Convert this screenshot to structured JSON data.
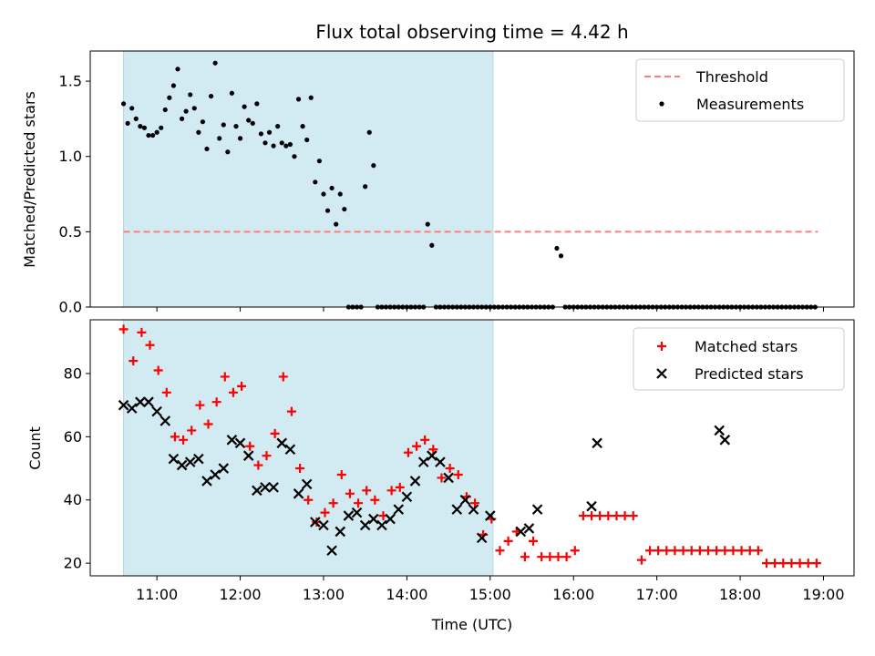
{
  "chart_data": [
    {
      "type": "scatter",
      "title": "Flux total observing time = 4.42 h",
      "xlabel": "",
      "ylabel": "Matched/Predicted stars",
      "xlim": [
        "10:12",
        "19:22"
      ],
      "ylim": [
        0,
        1.7
      ],
      "yticks": [
        "0.0",
        "0.5",
        "1.0",
        "1.5"
      ],
      "shaded_interval": [
        "10:36",
        "15:02"
      ],
      "colors": {
        "threshold": "#ff7f7f",
        "measurements": "#000000",
        "shade": "#add8e6"
      },
      "legend_position": "upper right",
      "threshold": {
        "label": "Threshold",
        "value": 0.5,
        "x_start": "10:36",
        "x_end": "18:56"
      },
      "series": [
        {
          "name": "Measurements",
          "x": [
            "10:36",
            "10:39",
            "10:42",
            "10:45",
            "10:48",
            "10:51",
            "10:54",
            "10:57",
            "11:00",
            "11:03",
            "11:06",
            "11:09",
            "11:12",
            "11:15",
            "11:18",
            "11:21",
            "11:24",
            "11:27",
            "11:30",
            "11:33",
            "11:36",
            "11:39",
            "11:42",
            "11:45",
            "11:48",
            "11:51",
            "11:54",
            "11:57",
            "12:00",
            "12:03",
            "12:06",
            "12:09",
            "12:12",
            "12:15",
            "12:18",
            "12:21",
            "12:24",
            "12:27",
            "12:30",
            "12:33",
            "12:36",
            "12:39",
            "12:42",
            "12:45",
            "12:48",
            "12:51",
            "12:54",
            "12:57",
            "13:00",
            "13:03",
            "13:06",
            "13:09",
            "13:12",
            "13:15",
            "13:18",
            "13:21",
            "13:24",
            "13:27",
            "13:30",
            "13:33",
            "13:36",
            "13:39",
            "13:42",
            "13:45",
            "13:48",
            "13:51",
            "13:54",
            "13:57",
            "14:00",
            "14:03",
            "14:06",
            "14:09",
            "14:12",
            "14:15",
            "14:18",
            "14:21",
            "14:24",
            "14:27",
            "14:30",
            "14:33",
            "14:36",
            "14:39",
            "14:42",
            "14:45",
            "14:48",
            "14:51",
            "14:54",
            "14:57",
            "15:00",
            "15:03",
            "15:06",
            "15:09",
            "15:12",
            "15:15",
            "15:18",
            "15:21",
            "15:24",
            "15:27",
            "15:30",
            "15:33",
            "15:36",
            "15:39",
            "15:42",
            "15:45",
            "15:48",
            "15:51",
            "15:54",
            "15:57",
            "16:00",
            "16:03",
            "16:06",
            "16:09",
            "16:12",
            "16:15",
            "16:18",
            "16:21",
            "16:24",
            "16:27",
            "16:30",
            "16:33",
            "16:36",
            "16:39",
            "16:42",
            "16:45",
            "16:48",
            "16:51",
            "16:54",
            "16:57",
            "17:00",
            "17:03",
            "17:06",
            "17:09",
            "17:12",
            "17:15",
            "17:18",
            "17:21",
            "17:24",
            "17:27",
            "17:30",
            "17:33",
            "17:36",
            "17:39",
            "17:42",
            "17:45",
            "17:48",
            "17:51",
            "17:54",
            "17:57",
            "18:00",
            "18:03",
            "18:06",
            "18:09",
            "18:12",
            "18:15",
            "18:18",
            "18:21",
            "18:24",
            "18:27",
            "18:30",
            "18:33",
            "18:36",
            "18:39",
            "18:42",
            "18:45",
            "18:48",
            "18:51",
            "18:54"
          ],
          "y": [
            1.35,
            1.22,
            1.32,
            1.25,
            1.2,
            1.19,
            1.14,
            1.14,
            1.16,
            1.19,
            1.31,
            1.39,
            1.47,
            1.58,
            1.25,
            1.3,
            1.41,
            1.32,
            1.16,
            1.23,
            1.05,
            1.4,
            1.62,
            1.12,
            1.21,
            1.03,
            1.42,
            1.2,
            1.12,
            1.33,
            1.24,
            1.22,
            1.35,
            1.15,
            1.09,
            1.16,
            1.07,
            1.2,
            1.09,
            1.07,
            1.08,
            1.0,
            1.38,
            1.2,
            1.11,
            1.39,
            0.83,
            0.97,
            0.75,
            0.64,
            0.79,
            0.55,
            0.75,
            0.65,
            0.0,
            0.0,
            0.0,
            0.0,
            0.8,
            1.16,
            0.94,
            0.0,
            0.0,
            0.0,
            0.0,
            0.0,
            0.0,
            0.0,
            0.0,
            0.0,
            0.0,
            0.0,
            0.0,
            0.55,
            0.41,
            0.0,
            0.0,
            0.0,
            0.0,
            0.0,
            0.0,
            0.0,
            0.0,
            0.0,
            0.0,
            0.0,
            0.0,
            0.0,
            0.0,
            0.0,
            0.0,
            0.0,
            0.0,
            0.0,
            0.0,
            0.0,
            0.0,
            0.0,
            0.0,
            0.0,
            0.0,
            0.0,
            0.0,
            0.0,
            0.39,
            0.34,
            0.0,
            0.0,
            0.0,
            0.0,
            0.0,
            0.0,
            0.0,
            0.0,
            0.0,
            0.0,
            0.0,
            0.0,
            0.0,
            0.0,
            0.0,
            0.0,
            0.0,
            0.0,
            0.0,
            0.0,
            0.0,
            0.0,
            0.0,
            0.0,
            0.0,
            0.0,
            0.0,
            0.0,
            0.0,
            0.0,
            0.0,
            0.0,
            0.0,
            0.0,
            0.0,
            0.0,
            0.0,
            0.0,
            0.0,
            0.0,
            0.0,
            0.0,
            0.0,
            0.0,
            0.0,
            0.0,
            0.0,
            0.0,
            0.0,
            0.0,
            0.0,
            0.0,
            0.0,
            0.0,
            0.0,
            0.0,
            0.0,
            0.0,
            0.0,
            0.0,
            0.0
          ]
        }
      ],
      "legend": [
        "Threshold",
        "Measurements"
      ]
    },
    {
      "type": "scatter",
      "title": "",
      "xlabel": "Time (UTC)",
      "ylabel": "Count",
      "xlim": [
        "10:12",
        "19:22"
      ],
      "ylim": [
        16,
        97
      ],
      "yticks": [
        "20",
        "40",
        "60",
        "80"
      ],
      "xticks": [
        "11:00",
        "12:00",
        "13:00",
        "14:00",
        "15:00",
        "16:00",
        "17:00",
        "18:00",
        "19:00"
      ],
      "shaded_interval": [
        "10:36",
        "15:02"
      ],
      "colors": {
        "matched": "#ff0000",
        "predicted": "#000000",
        "shade": "#add8e6"
      },
      "legend_position": "upper right",
      "series": [
        {
          "name": "Matched stars",
          "marker": "plus",
          "x": [
            "10:36",
            "10:43",
            "10:49",
            "10:55",
            "11:01",
            "11:07",
            "11:13",
            "11:19",
            "11:25",
            "11:31",
            "11:37",
            "11:43",
            "11:49",
            "11:55",
            "12:01",
            "12:07",
            "12:13",
            "12:19",
            "12:25",
            "12:31",
            "12:37",
            "12:43",
            "12:49",
            "12:55",
            "13:01",
            "13:07",
            "13:13",
            "13:19",
            "13:25",
            "13:31",
            "13:37",
            "13:43",
            "13:49",
            "13:55",
            "14:01",
            "14:07",
            "14:13",
            "14:19",
            "14:25",
            "14:31",
            "14:37",
            "14:43",
            "14:49",
            "14:55",
            "15:01",
            "15:07",
            "15:13",
            "15:19",
            "15:25",
            "15:31",
            "15:37",
            "15:43",
            "15:49",
            "15:55",
            "16:01",
            "16:07",
            "16:13",
            "16:19",
            "16:25",
            "16:31",
            "16:37",
            "16:43",
            "16:49",
            "16:55",
            "17:01",
            "17:07",
            "17:13",
            "17:19",
            "17:25",
            "17:31",
            "17:37",
            "17:43",
            "17:49",
            "17:55",
            "18:01",
            "18:07",
            "18:13",
            "18:19",
            "18:25",
            "18:31",
            "18:37",
            "18:43",
            "18:49",
            "18:55"
          ],
          "y": [
            94,
            84,
            93,
            89,
            81,
            74,
            60,
            59,
            62,
            70,
            64,
            71,
            79,
            74,
            76,
            57,
            51,
            54,
            61,
            79,
            68,
            50,
            40,
            33,
            36,
            39,
            48,
            42,
            39,
            43,
            40,
            35,
            43,
            44,
            55,
            57,
            59,
            56,
            47,
            50,
            48,
            41,
            39,
            29,
            34,
            24,
            27,
            30,
            22,
            27,
            22,
            22,
            22,
            22,
            24,
            35,
            35,
            35,
            35,
            35,
            35,
            35,
            21,
            24,
            24,
            24,
            24,
            24,
            24,
            24,
            24,
            24,
            24,
            24,
            24,
            24,
            24,
            20,
            20,
            20,
            20,
            20,
            20,
            20
          ]
        },
        {
          "name": "Predicted stars",
          "marker": "x",
          "x": [
            "10:36",
            "10:42",
            "10:48",
            "10:54",
            "11:00",
            "11:06",
            "11:12",
            "11:18",
            "11:24",
            "11:30",
            "11:36",
            "11:42",
            "11:48",
            "11:54",
            "12:00",
            "12:06",
            "12:12",
            "12:18",
            "12:24",
            "12:30",
            "12:36",
            "12:42",
            "12:48",
            "12:54",
            "13:00",
            "13:06",
            "13:12",
            "13:18",
            "13:24",
            "13:30",
            "13:36",
            "13:42",
            "13:48",
            "13:54",
            "14:00",
            "14:06",
            "14:12",
            "14:18",
            "14:24",
            "14:30",
            "14:36",
            "14:42",
            "14:48",
            "14:54",
            "15:00",
            "15:22",
            "15:28",
            "15:34",
            "16:13",
            "16:17",
            "17:45",
            "17:49"
          ],
          "y": [
            70,
            69,
            71,
            71,
            68,
            65,
            53,
            51,
            52,
            53,
            46,
            48,
            50,
            59,
            58,
            54,
            43,
            44,
            44,
            58,
            56,
            42,
            45,
            33,
            32,
            24,
            30,
            35,
            36,
            32,
            34,
            32,
            34,
            37,
            41,
            46,
            52,
            54,
            52,
            47,
            37,
            40,
            37,
            28,
            35,
            30,
            31,
            37,
            38,
            58,
            62,
            59
          ]
        }
      ],
      "legend": [
        "Matched stars",
        "Predicted stars"
      ]
    }
  ]
}
